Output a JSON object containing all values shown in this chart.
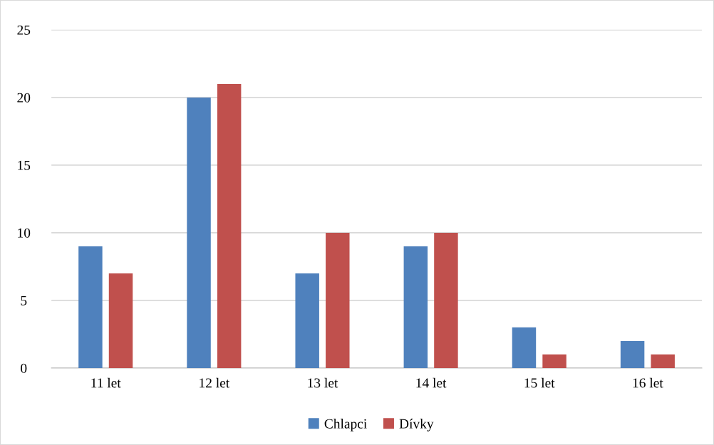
{
  "chart_data": {
    "type": "bar",
    "categories": [
      "11 let",
      "12 let",
      "13 let",
      "14 let",
      "15 let",
      "16 let"
    ],
    "series": [
      {
        "name": "Chlapci",
        "color": "#4f81bd",
        "values": [
          9,
          20,
          7,
          9,
          3,
          2
        ]
      },
      {
        "name": "Dívky",
        "color": "#c0504d",
        "values": [
          7,
          21,
          10,
          10,
          1,
          1
        ]
      }
    ],
    "ylim": [
      0,
      25
    ],
    "yticks": [
      0,
      5,
      10,
      15,
      20,
      25
    ],
    "grid": "y",
    "legend": "bottom"
  }
}
